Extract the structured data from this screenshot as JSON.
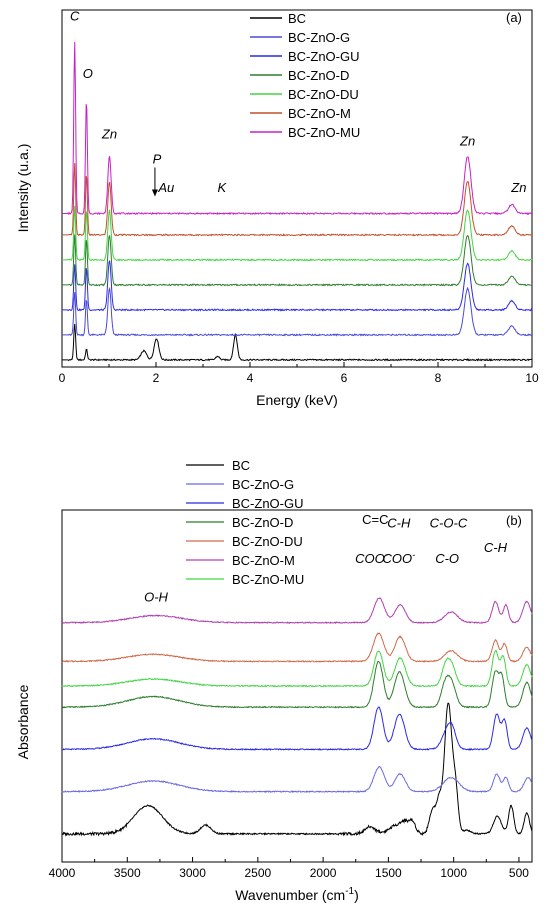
{
  "chart_data": [
    {
      "type": "line",
      "panel_label": "(a)",
      "xlabel": "Energy (keV)",
      "ylabel": "Intensity (u.a.)",
      "xlim": [
        0,
        10
      ],
      "xticks": [
        "0",
        "2",
        "4",
        "6",
        "8",
        "10"
      ],
      "x_scale": "linear",
      "legend": "top-right",
      "grid": false,
      "series": [
        {
          "name": "BC",
          "color": "#000000",
          "baseline": 0.02,
          "peaks": [
            [
              0.27,
              0.1,
              0.02
            ],
            [
              0.52,
              0.03,
              0.02
            ],
            [
              1.74,
              0.025,
              0.06
            ],
            [
              2.01,
              0.06,
              0.05
            ],
            [
              3.31,
              0.01,
              0.04
            ],
            [
              3.69,
              0.07,
              0.04
            ]
          ]
        },
        {
          "name": "BC-ZnO-G",
          "color": "#4a4ad8",
          "baseline": 0.09,
          "peaks": [
            [
              0.27,
              0.12,
              0.02
            ],
            [
              0.52,
              0.1,
              0.02
            ],
            [
              1.01,
              0.13,
              0.035
            ],
            [
              8.63,
              0.13,
              0.07
            ],
            [
              9.57,
              0.025,
              0.07
            ]
          ]
        },
        {
          "name": "BC-ZnO-GU",
          "color": "#2a2ae8",
          "baseline": 0.16,
          "peaks": [
            [
              0.27,
              0.13,
              0.02
            ],
            [
              0.52,
              0.12,
              0.02
            ],
            [
              1.01,
              0.14,
              0.035
            ],
            [
              8.63,
              0.13,
              0.07
            ],
            [
              9.57,
              0.025,
              0.07
            ]
          ]
        },
        {
          "name": "BC-ZnO-D",
          "color": "#2e7d2e",
          "baseline": 0.23,
          "peaks": [
            [
              0.27,
              0.14,
              0.02
            ],
            [
              0.52,
              0.13,
              0.02
            ],
            [
              1.01,
              0.14,
              0.035
            ],
            [
              8.63,
              0.14,
              0.07
            ],
            [
              9.57,
              0.025,
              0.07
            ]
          ]
        },
        {
          "name": "BC-ZnO-DU",
          "color": "#44d444",
          "baseline": 0.3,
          "peaks": [
            [
              0.27,
              0.15,
              0.02
            ],
            [
              0.52,
              0.14,
              0.02
            ],
            [
              1.01,
              0.14,
              0.035
            ],
            [
              8.63,
              0.14,
              0.07
            ],
            [
              9.57,
              0.025,
              0.07
            ]
          ]
        },
        {
          "name": "BC-ZnO-M",
          "color": "#c0522a",
          "baseline": 0.37,
          "peaks": [
            [
              0.27,
              0.2,
              0.02
            ],
            [
              0.52,
              0.17,
              0.02
            ],
            [
              1.01,
              0.15,
              0.035
            ],
            [
              8.63,
              0.15,
              0.07
            ],
            [
              9.57,
              0.025,
              0.07
            ]
          ]
        },
        {
          "name": "BC-ZnO-MU",
          "color": "#c820c8",
          "baseline": 0.43,
          "peaks": [
            [
              0.27,
              0.48,
              0.02
            ],
            [
              0.52,
              0.32,
              0.02
            ],
            [
              1.01,
              0.16,
              0.035
            ],
            [
              8.63,
              0.16,
              0.07
            ],
            [
              9.57,
              0.025,
              0.07
            ]
          ]
        }
      ],
      "annotations": [
        {
          "text": "C",
          "x": 0.27,
          "y": 0.97,
          "italic": true
        },
        {
          "text": "O",
          "x": 0.55,
          "y": 0.81,
          "italic": true
        },
        {
          "text": "Zn",
          "x": 1.01,
          "y": 0.64,
          "italic": true
        },
        {
          "text": "P",
          "x": 2.02,
          "y": 0.57,
          "italic": true,
          "arrow": true
        },
        {
          "text": "Au",
          "x": 2.22,
          "y": 0.49,
          "italic": true
        },
        {
          "text": "K",
          "x": 3.4,
          "y": 0.49,
          "italic": true
        },
        {
          "text": "Zn",
          "x": 8.63,
          "y": 0.62,
          "italic": true
        },
        {
          "text": "Zn",
          "x": 9.72,
          "y": 0.49,
          "italic": true
        }
      ]
    },
    {
      "type": "line",
      "panel_label": "(b)",
      "xlabel": "Wavenumber (cm",
      "xlabel_sup": "-1",
      "xlabel_close": ")",
      "ylabel": "Absorbance",
      "xlim": [
        4000,
        400
      ],
      "xticks": [
        "4000",
        "3500",
        "3000",
        "2500",
        "2000",
        "1500",
        "1000",
        "500"
      ],
      "x_scale": "linear",
      "legend": "top-left",
      "grid": false,
      "series": [
        {
          "name": "BC",
          "color": "#000000",
          "baseline": 0.08
        },
        {
          "name": "BC-ZnO-G",
          "color": "#6a6ae0",
          "baseline": 0.2
        },
        {
          "name": "BC-ZnO-GU",
          "color": "#2a2ae8",
          "baseline": 0.32
        },
        {
          "name": "BC-ZnO-D",
          "color": "#2e7d2e",
          "baseline": 0.44
        },
        {
          "name": "BC-ZnO-DU",
          "color": "#d06a4a",
          "baseline": 0.57
        },
        {
          "name": "BC-ZnO-M",
          "color": "#b040b0",
          "baseline": 0.68
        },
        {
          "name": "BC-ZnO-MU",
          "color": "#44d444",
          "baseline": 0.5
        }
      ],
      "annotations": [
        {
          "text": "O-H",
          "x": 3280,
          "y": 0.74,
          "italic": true
        },
        {
          "text": "C=C",
          "x": 1600,
          "y": 0.96,
          "italic": false
        },
        {
          "text": "C-H",
          "x": 1420,
          "y": 0.95,
          "italic": true
        },
        {
          "text": "COO",
          "x": 1630,
          "y": 0.85,
          "italic": true,
          "sup": "-"
        },
        {
          "text": "COO",
          "x": 1420,
          "y": 0.85,
          "italic": true,
          "sup": "-"
        },
        {
          "text": "C-O-C",
          "x": 1040,
          "y": 0.95,
          "italic": true
        },
        {
          "text": "C-O",
          "x": 1050,
          "y": 0.85,
          "italic": true
        },
        {
          "text": "C-H",
          "x": 680,
          "y": 0.88,
          "italic": true
        }
      ]
    }
  ]
}
